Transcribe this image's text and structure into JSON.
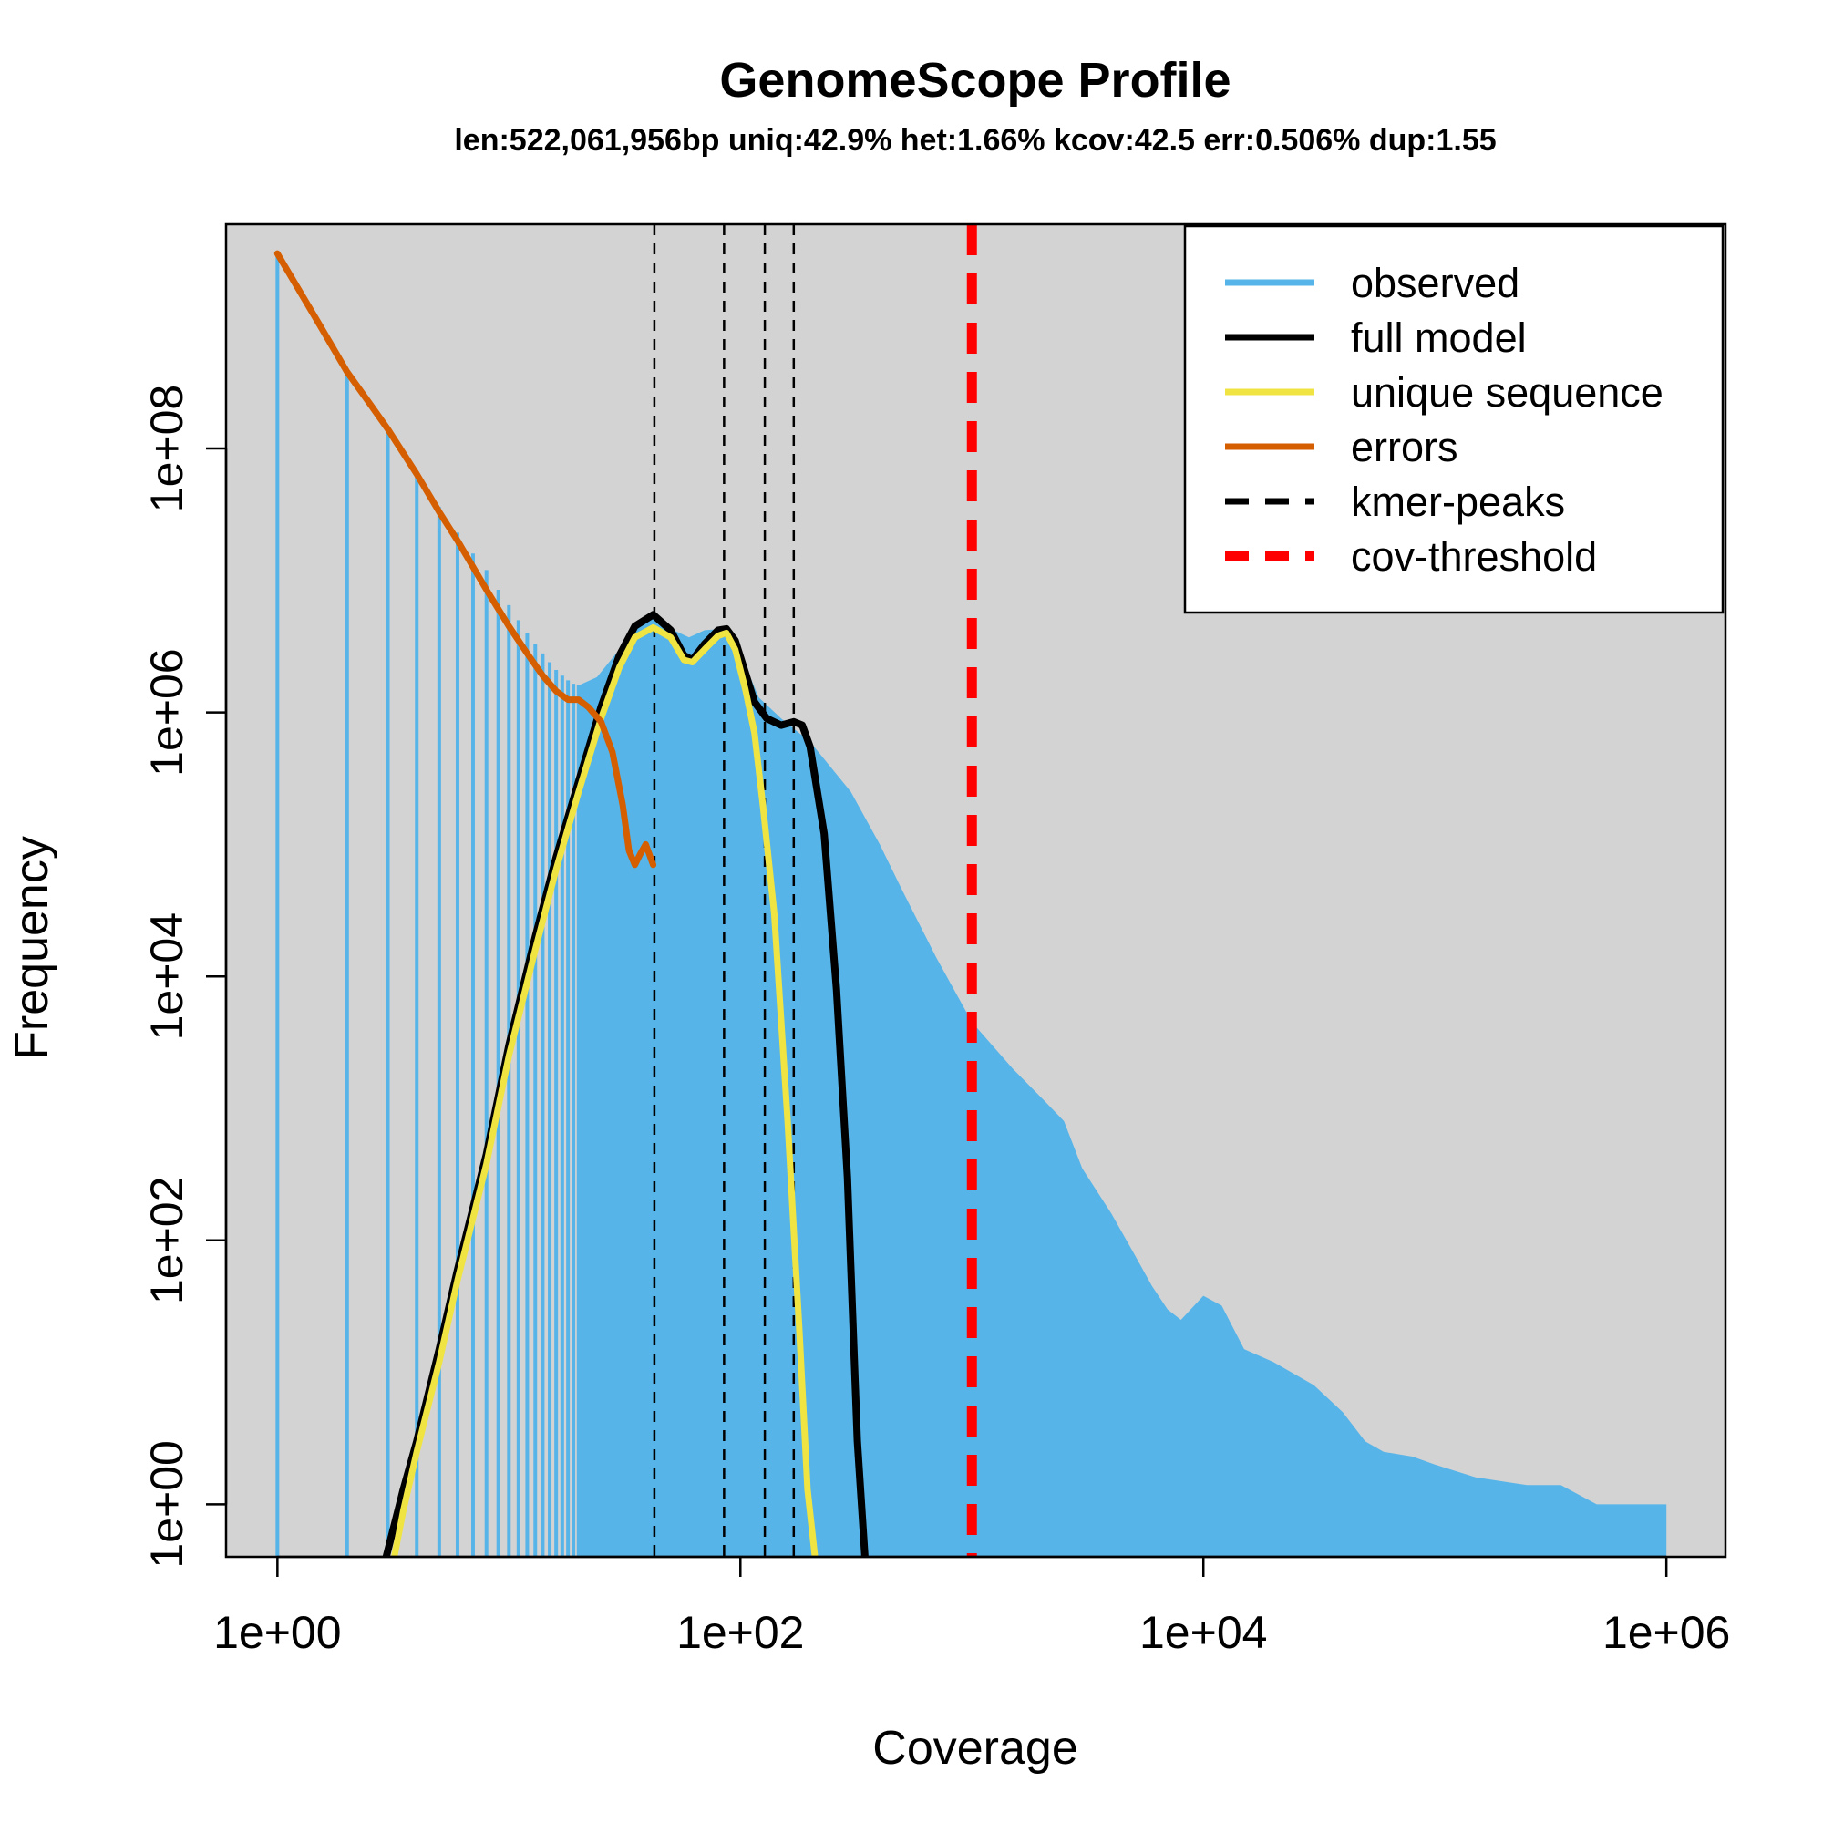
{
  "chart_data": {
    "type": "line",
    "title": "GenomeScope Profile",
    "subtitle": "len:522,061,956bp uniq:42.9% het:1.66% kcov:42.5 err:0.506% dup:1.55",
    "xlabel": "Coverage",
    "ylabel": "Frequency",
    "x_scale": "log10",
    "y_scale": "log10",
    "xlim": [
      0.6,
      1800000
    ],
    "ylim": [
      0.4,
      5000000000
    ],
    "x_ticks": [
      {
        "value": 1,
        "label": "1e+00"
      },
      {
        "value": 100,
        "label": "1e+02"
      },
      {
        "value": 10000,
        "label": "1e+04"
      },
      {
        "value": 1000000,
        "label": "1e+06"
      }
    ],
    "y_ticks": [
      {
        "value": 1,
        "label": "1e+00"
      },
      {
        "value": 100,
        "label": "1e+02"
      },
      {
        "value": 10000,
        "label": "1e+04"
      },
      {
        "value": 1000000,
        "label": "1e+06"
      },
      {
        "value": 100000000,
        "label": "1e+08"
      }
    ],
    "grid": false,
    "legend_position": "top-right",
    "legend": [
      {
        "label": "observed",
        "color": "#56B4E9",
        "style": "solid"
      },
      {
        "label": "full model",
        "color": "#000000",
        "style": "solid"
      },
      {
        "label": "unique sequence",
        "color": "#F0E442",
        "style": "solid"
      },
      {
        "label": "errors",
        "color": "#D55E00",
        "style": "solid"
      },
      {
        "label": "kmer-peaks",
        "color": "#000000",
        "style": "dashed"
      },
      {
        "label": "cov-threshold",
        "color": "#FF0000",
        "style": "dashed"
      }
    ],
    "observed": {
      "color": "#56B4E9",
      "spikes": [
        [
          1,
          3000000000
        ],
        [
          2,
          380000000
        ],
        [
          3,
          140000000
        ],
        [
          4,
          64000000
        ],
        [
          5,
          36000000
        ],
        [
          6,
          23000000
        ],
        [
          7,
          16000000
        ],
        [
          8,
          12000000
        ],
        [
          9,
          8500000
        ],
        [
          10,
          6500000
        ],
        [
          11,
          5000000
        ],
        [
          12,
          4000000
        ],
        [
          13,
          3300000
        ],
        [
          14,
          2800000
        ],
        [
          15,
          2400000
        ],
        [
          16,
          2100000
        ],
        [
          17,
          1900000
        ],
        [
          18,
          1750000
        ],
        [
          19,
          1650000
        ],
        [
          20,
          1600000
        ]
      ],
      "envelope": [
        [
          20,
          1600000
        ],
        [
          24,
          1850000
        ],
        [
          30,
          3000000
        ],
        [
          37,
          4800000
        ],
        [
          42,
          5200000
        ],
        [
          50,
          4300000
        ],
        [
          60,
          3700000
        ],
        [
          70,
          4200000
        ],
        [
          85,
          4300000
        ],
        [
          100,
          2800000
        ],
        [
          120,
          1300000
        ],
        [
          150,
          900000
        ],
        [
          200,
          600000
        ],
        [
          300,
          250000
        ],
        [
          400,
          100000
        ],
        [
          500,
          45000
        ],
        [
          700,
          14000
        ],
        [
          1000,
          4500
        ],
        [
          1500,
          2000
        ],
        [
          2000,
          1200
        ],
        [
          2500,
          800
        ],
        [
          3000,
          350
        ],
        [
          4000,
          160
        ],
        [
          5000,
          80
        ],
        [
          6000,
          45
        ],
        [
          7000,
          30
        ],
        [
          8000,
          25
        ],
        [
          10000,
          38
        ],
        [
          12000,
          32
        ],
        [
          15000,
          15
        ],
        [
          20000,
          12
        ],
        [
          30000,
          8
        ],
        [
          40000,
          5
        ],
        [
          50000,
          3
        ],
        [
          60000,
          2.5
        ],
        [
          80000,
          2.3
        ],
        [
          100000,
          2
        ],
        [
          150000,
          1.6
        ],
        [
          250000,
          1.4
        ],
        [
          350000,
          1.4
        ],
        [
          500000,
          1
        ],
        [
          1000000,
          1
        ]
      ]
    },
    "series": [
      {
        "name": "full model",
        "color": "#000000",
        "values": [
          [
            2.95,
            0.4
          ],
          [
            3.5,
            1.3
          ],
          [
            4,
            3
          ],
          [
            5,
            15
          ],
          [
            6,
            60
          ],
          [
            8,
            450
          ],
          [
            10,
            3000
          ],
          [
            13,
            20000
          ],
          [
            16,
            80000
          ],
          [
            20,
            300000
          ],
          [
            25,
            1100000
          ],
          [
            30,
            2700000
          ],
          [
            35,
            4500000
          ],
          [
            42,
            5500000
          ],
          [
            50,
            4200000
          ],
          [
            57,
            2700000
          ],
          [
            62,
            2500000
          ],
          [
            70,
            3300000
          ],
          [
            80,
            4200000
          ],
          [
            87,
            4300000
          ],
          [
            95,
            3500000
          ],
          [
            105,
            2000000
          ],
          [
            115,
            1200000
          ],
          [
            130,
            900000
          ],
          [
            150,
            800000
          ],
          [
            170,
            850000
          ],
          [
            185,
            800000
          ],
          [
            200,
            550000
          ],
          [
            230,
            120000
          ],
          [
            260,
            8000
          ],
          [
            290,
            300
          ],
          [
            320,
            3
          ],
          [
            345,
            0.4
          ]
        ]
      },
      {
        "name": "unique sequence",
        "color": "#F0E442",
        "values": [
          [
            3.2,
            0.4
          ],
          [
            3.5,
            0.9
          ],
          [
            4,
            2.5
          ],
          [
            5,
            12
          ],
          [
            6,
            50
          ],
          [
            8,
            380
          ],
          [
            10,
            2500
          ],
          [
            13,
            16000
          ],
          [
            16,
            65000
          ],
          [
            20,
            250000
          ],
          [
            25,
            900000
          ],
          [
            30,
            2200000
          ],
          [
            35,
            3700000
          ],
          [
            42,
            4400000
          ],
          [
            50,
            3700000
          ],
          [
            57,
            2500000
          ],
          [
            62,
            2400000
          ],
          [
            70,
            3000000
          ],
          [
            80,
            3800000
          ],
          [
            87,
            4000000
          ],
          [
            95,
            3000000
          ],
          [
            105,
            1500000
          ],
          [
            115,
            700000
          ],
          [
            125,
            200000
          ],
          [
            140,
            30000
          ],
          [
            160,
            800
          ],
          [
            180,
            20
          ],
          [
            195,
            1.3
          ],
          [
            210,
            0.4
          ]
        ]
      },
      {
        "name": "errors",
        "color": "#D55E00",
        "values": [
          [
            1,
            3000000000
          ],
          [
            1.5,
            900000000
          ],
          [
            2,
            380000000
          ],
          [
            2.5,
            220000000
          ],
          [
            3,
            140000000
          ],
          [
            4,
            64000000
          ],
          [
            5,
            33000000
          ],
          [
            6,
            20000000
          ],
          [
            8,
            8500000
          ],
          [
            10,
            4500000
          ],
          [
            12,
            2800000
          ],
          [
            14,
            1900000
          ],
          [
            16,
            1450000
          ],
          [
            18,
            1250000
          ],
          [
            20,
            1250000
          ],
          [
            22,
            1100000
          ],
          [
            25,
            850000
          ],
          [
            28,
            500000
          ],
          [
            31,
            200000
          ],
          [
            33,
            90000
          ],
          [
            35,
            70000
          ],
          [
            37,
            85000
          ],
          [
            39,
            100000
          ],
          [
            42,
            70000
          ]
        ]
      }
    ],
    "kmer_peaks": [
      42.5,
      85,
      127.5,
      170
    ],
    "cov_threshold": 1000
  }
}
